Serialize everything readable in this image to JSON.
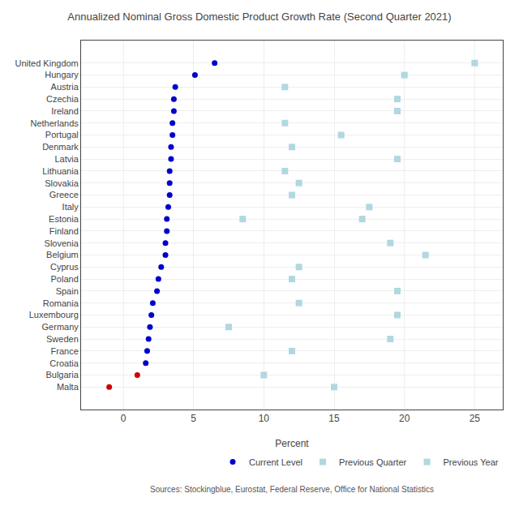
{
  "chart_data": {
    "type": "scatter",
    "orientation": "horizontal",
    "title": "Annualized Nominal Gross Domestic Product Growth Rate (Second Quarter 2021)",
    "x_label": "Percent",
    "annotations": [
      "Sources: Stockingblue, Eurostat, Federal Reserve, Office for National Statistics"
    ],
    "categories": [
      "United Kingdom",
      "Hungary",
      "Austria",
      "Czechia",
      "Ireland",
      "Netherlands",
      "Portugal",
      "Denmark",
      "Latvia",
      "Lithuania",
      "Slovakia",
      "Greece",
      "Italy",
      "Estonia",
      "Finland",
      "Slovenia",
      "Belgium",
      "Cyprus",
      "Poland",
      "Spain",
      "Romania",
      "Luxembourg",
      "Germany",
      "Sweden",
      "France",
      "Croatia",
      "Bulgaria",
      "Malta"
    ],
    "series": [
      {
        "name": "Previous Year",
        "marker": "square",
        "color": "#B0D8E0",
        "values": [
          25.0,
          20.0,
          11.5,
          19.5,
          19.5,
          11.5,
          15.5,
          12.0,
          19.5,
          11.5,
          12.5,
          12.0,
          17.5,
          17.0,
          null,
          19.0,
          21.5,
          12.5,
          12.0,
          19.5,
          12.5,
          19.5,
          null,
          19.0,
          12.0,
          null,
          10.0,
          15.0
        ]
      },
      {
        "name": "Previous Quarter",
        "marker": "square",
        "color": "#B0D8E0",
        "values": [
          null,
          null,
          null,
          null,
          null,
          null,
          null,
          null,
          null,
          null,
          null,
          null,
          null,
          8.5,
          null,
          null,
          null,
          null,
          null,
          null,
          null,
          null,
          7.5,
          null,
          null,
          null,
          null,
          null
        ]
      },
      {
        "name": "Current Level",
        "marker": "circle",
        "colors": [
          "#0000CD",
          "#0000CD",
          "#0000CD",
          "#0000CD",
          "#0000CD",
          "#0000CD",
          "#0000CD",
          "#0000CD",
          "#0000CD",
          "#0000CD",
          "#0000CD",
          "#0000CD",
          "#0000CD",
          "#0000CD",
          "#0000CD",
          "#0000CD",
          "#0000CD",
          "#0000CD",
          "#0000CD",
          "#0000CD",
          "#0000CD",
          "#0000CD",
          "#0000CD",
          "#0000CD",
          "#0000CD",
          "#0000CD",
          "#CC0000",
          "#CC0000"
        ],
        "values": [
          6.5,
          5.1,
          3.7,
          3.6,
          3.6,
          3.5,
          3.5,
          3.4,
          3.4,
          3.3,
          3.3,
          3.3,
          3.2,
          3.1,
          3.1,
          3.0,
          3.0,
          2.7,
          2.5,
          2.4,
          2.1,
          2.0,
          1.9,
          1.8,
          1.7,
          1.6,
          1.0,
          -1.0
        ]
      }
    ],
    "xlim": [
      -3,
      27
    ],
    "xticks": [
      0,
      5,
      10,
      15,
      20,
      25
    ],
    "grid": true,
    "legend": "lower right"
  }
}
